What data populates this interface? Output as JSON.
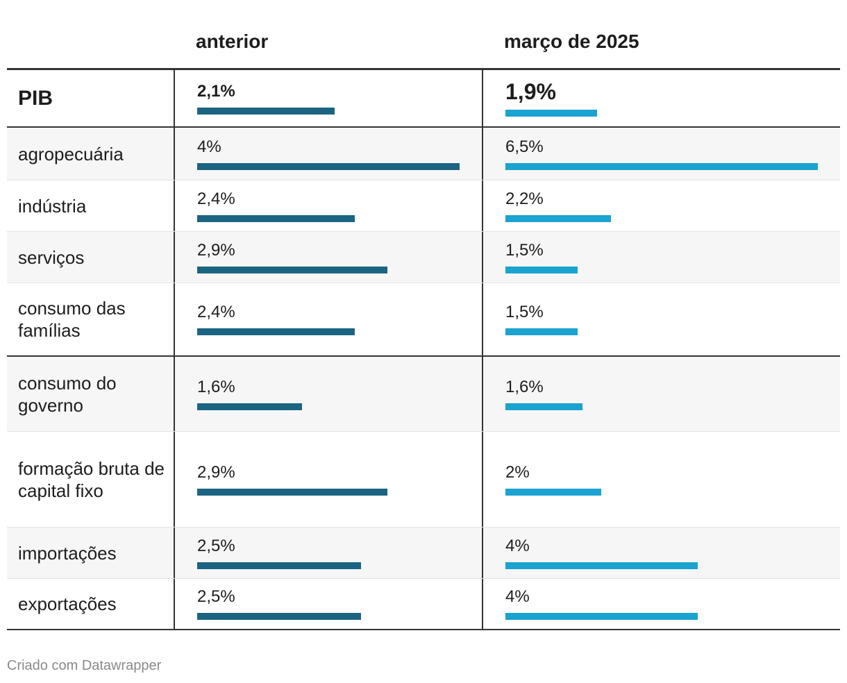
{
  "chart_data": {
    "type": "table",
    "columns": [
      "",
      "anterior",
      "março de 2025"
    ],
    "series": [
      {
        "name": "anterior",
        "color": "#1b6482"
      },
      {
        "name": "março de 2025",
        "color": "#1aa3d0"
      }
    ],
    "rows": [
      {
        "label": "PIB",
        "anterior": 2.1,
        "anterior_text": "2,1%",
        "marco": 1.9,
        "marco_text": "1,9%"
      },
      {
        "label": "agropecuária",
        "anterior": 4,
        "anterior_text": "4%",
        "marco": 6.5,
        "marco_text": "6,5%"
      },
      {
        "label": "indústria",
        "anterior": 2.4,
        "anterior_text": "2,4%",
        "marco": 2.2,
        "marco_text": "2,2%"
      },
      {
        "label": "serviços",
        "anterior": 2.9,
        "anterior_text": "2,9%",
        "marco": 1.5,
        "marco_text": "1,5%"
      },
      {
        "label": "consumo das famílias",
        "anterior": 2.4,
        "anterior_text": "2,4%",
        "marco": 1.5,
        "marco_text": "1,5%"
      },
      {
        "label": "consumo do governo",
        "anterior": 1.6,
        "anterior_text": "1,6%",
        "marco": 1.6,
        "marco_text": "1,6%"
      },
      {
        "label": "formação bruta de capital fixo",
        "anterior": 2.9,
        "anterior_text": "2,9%",
        "marco": 2,
        "marco_text": "2%"
      },
      {
        "label": "importações",
        "anterior": 2.5,
        "anterior_text": "2,5%",
        "marco": 4,
        "marco_text": "4%"
      },
      {
        "label": "exportações",
        "anterior": 2.5,
        "anterior_text": "2,5%",
        "marco": 4,
        "marco_text": "4%"
      }
    ],
    "scale_max": {
      "anterior": 4,
      "marco": 6.5
    },
    "xlabel": "",
    "ylabel": ""
  },
  "header": {
    "col_anterior": "anterior",
    "col_marco": "março de 2025"
  },
  "footer": {
    "credit": "Criado com Datawrapper"
  }
}
